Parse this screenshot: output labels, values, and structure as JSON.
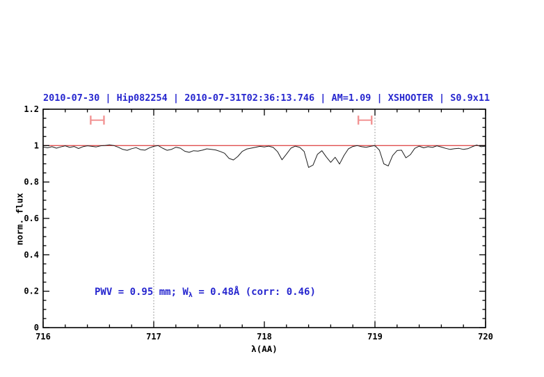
{
  "colors": {
    "title_blue": "#2727cf",
    "annotation_blue": "#2727cf",
    "spectrum": "#1c1c1c",
    "continuum": "#e04f4f",
    "marker": "#f29494",
    "grid": "#808080",
    "axis": "#000000"
  },
  "annotation": {
    "part1": "PWV = 0.95 mm; W",
    "sub": "λ",
    "part2": " = 0.48Å (corr: 0.46)"
  },
  "chart_data": {
    "type": "line",
    "title": "2010-07-30 | Hip082254 | 2010-07-31T02:36:13.746 | AM=1.09 | XSHOOTER | S0.9x11",
    "xlabel": "λ(AA)",
    "ylabel": "norm. flux",
    "legend": "none",
    "grid": "vertical dotted lines at 717 and 719",
    "axes": {
      "xlim": [
        716,
        720
      ],
      "ylim": [
        0,
        1.2
      ],
      "x_major": [
        716,
        717,
        718,
        719,
        720
      ],
      "x_tick_labels": [
        "716",
        "717",
        "718",
        "719",
        "720"
      ],
      "x_minor_step": 0.2,
      "y_major": [
        0,
        0.2,
        0.4,
        0.6,
        0.8,
        1,
        1.2
      ],
      "y_tick_labels": [
        "0",
        "0.2",
        "0.4",
        "0.6",
        "0.8",
        "1",
        "1.2"
      ],
      "y_minor_step": 0.05,
      "grid_x": [
        717,
        719
      ]
    },
    "series": [
      {
        "name": "continuum-fit",
        "color": "#e04f4f",
        "points": [
          [
            716.0,
            1.0
          ],
          [
            720.0,
            1.0
          ]
        ]
      },
      {
        "name": "observed-spectrum",
        "color": "#1c1c1c",
        "points": [
          [
            716.0,
            0.992
          ],
          [
            716.04,
            0.988
          ],
          [
            716.08,
            0.994
          ],
          [
            716.12,
            0.986
          ],
          [
            716.16,
            0.993
          ],
          [
            716.2,
            0.999
          ],
          [
            716.24,
            0.99
          ],
          [
            716.28,
            0.995
          ],
          [
            716.32,
            0.984
          ],
          [
            716.36,
            0.994
          ],
          [
            716.4,
            0.999
          ],
          [
            716.44,
            0.996
          ],
          [
            716.48,
            0.993
          ],
          [
            716.52,
            0.999
          ],
          [
            716.56,
            1.001
          ],
          [
            716.6,
            1.004
          ],
          [
            716.64,
            1.0
          ],
          [
            716.68,
            0.991
          ],
          [
            716.72,
            0.979
          ],
          [
            716.76,
            0.974
          ],
          [
            716.8,
            0.983
          ],
          [
            716.84,
            0.989
          ],
          [
            716.88,
            0.978
          ],
          [
            716.92,
            0.975
          ],
          [
            716.96,
            0.987
          ],
          [
            717.0,
            0.996
          ],
          [
            717.04,
            1.0
          ],
          [
            717.08,
            0.986
          ],
          [
            717.12,
            0.974
          ],
          [
            717.16,
            0.979
          ],
          [
            717.2,
            0.991
          ],
          [
            717.24,
            0.986
          ],
          [
            717.28,
            0.969
          ],
          [
            717.32,
            0.963
          ],
          [
            717.36,
            0.972
          ],
          [
            717.4,
            0.97
          ],
          [
            717.44,
            0.975
          ],
          [
            717.48,
            0.982
          ],
          [
            717.52,
            0.979
          ],
          [
            717.56,
            0.976
          ],
          [
            717.6,
            0.968
          ],
          [
            717.64,
            0.958
          ],
          [
            717.68,
            0.93
          ],
          [
            717.72,
            0.921
          ],
          [
            717.76,
            0.94
          ],
          [
            717.8,
            0.968
          ],
          [
            717.84,
            0.981
          ],
          [
            717.88,
            0.986
          ],
          [
            717.92,
            0.991
          ],
          [
            717.96,
            0.996
          ],
          [
            718.0,
            0.993
          ],
          [
            718.04,
            0.997
          ],
          [
            718.08,
            0.99
          ],
          [
            718.12,
            0.966
          ],
          [
            718.16,
            0.922
          ],
          [
            718.2,
            0.953
          ],
          [
            718.24,
            0.986
          ],
          [
            718.28,
            0.997
          ],
          [
            718.32,
            0.99
          ],
          [
            718.36,
            0.968
          ],
          [
            718.4,
            0.88
          ],
          [
            718.44,
            0.893
          ],
          [
            718.48,
            0.952
          ],
          [
            718.52,
            0.972
          ],
          [
            718.56,
            0.938
          ],
          [
            718.6,
            0.908
          ],
          [
            718.64,
            0.936
          ],
          [
            718.68,
            0.899
          ],
          [
            718.72,
            0.946
          ],
          [
            718.76,
            0.982
          ],
          [
            718.8,
            0.995
          ],
          [
            718.84,
            1.0
          ],
          [
            718.88,
            0.994
          ],
          [
            718.92,
            0.991
          ],
          [
            718.96,
            0.996
          ],
          [
            719.0,
            1.0
          ],
          [
            719.04,
            0.975
          ],
          [
            719.08,
            0.9
          ],
          [
            719.12,
            0.888
          ],
          [
            719.16,
            0.945
          ],
          [
            719.2,
            0.973
          ],
          [
            719.24,
            0.975
          ],
          [
            719.28,
            0.933
          ],
          [
            719.32,
            0.95
          ],
          [
            719.36,
            0.985
          ],
          [
            719.4,
            0.997
          ],
          [
            719.44,
            0.988
          ],
          [
            719.48,
            0.994
          ],
          [
            719.52,
            0.99
          ],
          [
            719.56,
            0.999
          ],
          [
            719.6,
            0.992
          ],
          [
            719.64,
            0.985
          ],
          [
            719.68,
            0.979
          ],
          [
            719.72,
            0.983
          ],
          [
            719.76,
            0.985
          ],
          [
            719.8,
            0.979
          ],
          [
            719.84,
            0.983
          ],
          [
            719.88,
            0.994
          ],
          [
            719.92,
            1.003
          ],
          [
            719.96,
            0.994
          ],
          [
            720.0,
            0.997
          ]
        ]
      }
    ],
    "markers": [
      {
        "name": "telluric-band-marker-left",
        "x1": 716.43,
        "x2": 716.55,
        "y": 1.14
      },
      {
        "name": "telluric-band-marker-right",
        "x1": 718.85,
        "x2": 718.97,
        "y": 1.14
      }
    ]
  }
}
